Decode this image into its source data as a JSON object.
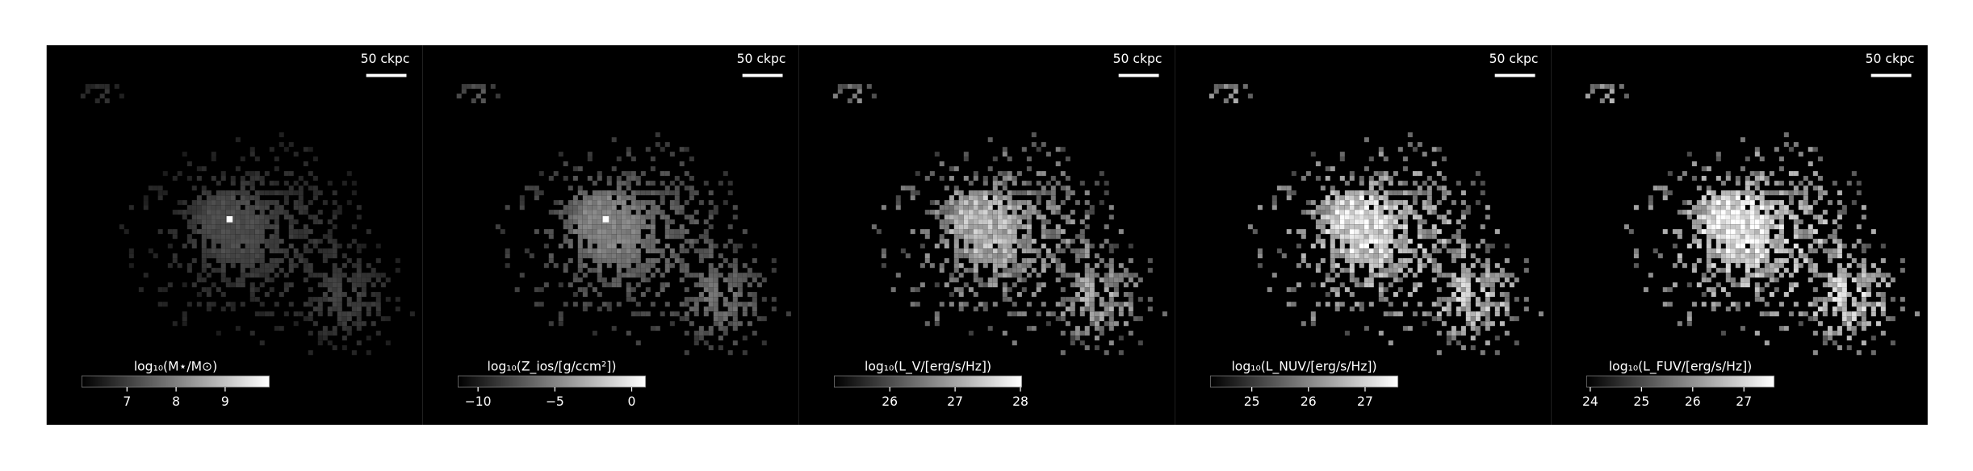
{
  "chart_data": [
    {
      "type": "image",
      "scale_bar_label": "50 ckpc",
      "colorbar": {
        "label": "log₁₀(M⋆/M⊙)",
        "lim": [
          6.08,
          9.9
        ],
        "ticks": [
          7,
          8,
          9
        ]
      }
    },
    {
      "type": "image",
      "scale_bar_label": "50 ckpc",
      "colorbar": {
        "label": "log₁₀(Z_ios/[g/ccm²])",
        "lim": [
          -11.3,
          0.9
        ],
        "ticks": [
          {
            "value": -10,
            "label": "−10"
          },
          {
            "value": -5,
            "label": "−5"
          },
          0
        ]
      }
    },
    {
      "type": "image",
      "scale_bar_label": "50 ckpc",
      "colorbar": {
        "label": "log₁₀(L_V/[erg/s/Hz])",
        "lim": [
          25.15,
          28.02
        ],
        "ticks": [
          26,
          27,
          28
        ]
      }
    },
    {
      "type": "image",
      "scale_bar_label": "50 ckpc",
      "colorbar": {
        "label": "log₁₀(L_NUV/[erg/s/Hz])",
        "lim": [
          24.27,
          27.58
        ],
        "ticks": [
          25,
          26,
          27
        ]
      }
    },
    {
      "type": "image",
      "scale_bar_label": "50 ckpc",
      "colorbar": {
        "label": "log₁₀(L_FUV/[erg/s/Hz])",
        "lim": [
          23.93,
          27.59
        ],
        "ticks": [
          24,
          25,
          26,
          27
        ]
      }
    }
  ]
}
